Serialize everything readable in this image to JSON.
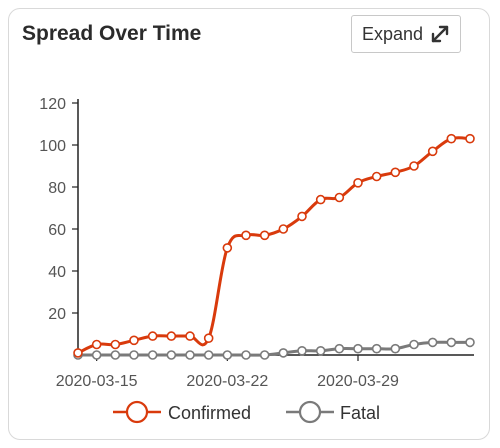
{
  "card": {
    "title": "Spread Over Time",
    "expand_label": "Expand",
    "expand_icon": "expand-arrows-icon"
  },
  "chart_data": {
    "type": "line",
    "title": "Spread Over Time",
    "xlabel": "",
    "ylabel": "",
    "x": [
      "2020-03-14",
      "2020-03-15",
      "2020-03-16",
      "2020-03-17",
      "2020-03-18",
      "2020-03-19",
      "2020-03-20",
      "2020-03-21",
      "2020-03-22",
      "2020-03-23",
      "2020-03-24",
      "2020-03-25",
      "2020-03-26",
      "2020-03-27",
      "2020-03-28",
      "2020-03-29",
      "2020-03-30",
      "2020-03-31",
      "2020-04-01",
      "2020-04-02",
      "2020-04-03",
      "2020-04-04"
    ],
    "x_tick_labels": [
      "2020-03-15",
      "2020-03-22",
      "2020-03-29"
    ],
    "y_ticks": [
      20,
      40,
      60,
      80,
      100,
      120
    ],
    "ylim": [
      0,
      120
    ],
    "grid": false,
    "legend_position": "bottom",
    "series": [
      {
        "name": "Confirmed",
        "color": "#d93a0c",
        "values": [
          1,
          5,
          5,
          7,
          9,
          9,
          9,
          8,
          51,
          57,
          57,
          60,
          66,
          74,
          75,
          82,
          85,
          87,
          90,
          97,
          103,
          103
        ]
      },
      {
        "name": "Fatal",
        "color": "#7a7a7a",
        "values": [
          0,
          0,
          0,
          0,
          0,
          0,
          0,
          0,
          0,
          0,
          0,
          1,
          2,
          2,
          3,
          3,
          3,
          3,
          5,
          6,
          6,
          6
        ]
      }
    ]
  }
}
